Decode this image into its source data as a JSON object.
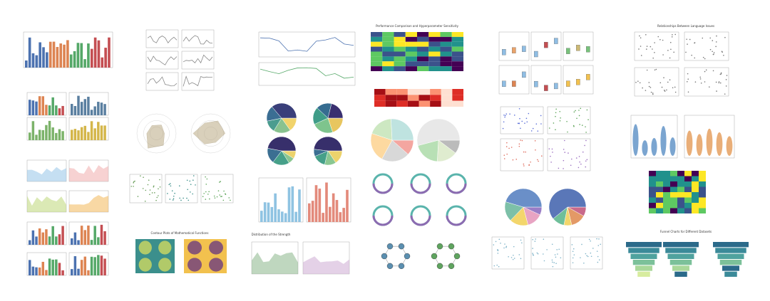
{
  "panels": {
    "performance": {
      "title": "Performance Comparison and Hyperparameter Sensitivity"
    },
    "contour": {
      "title": "Contour Plots of Mathematical Functions"
    },
    "language": {
      "title": "Relationships Between Language Issues"
    },
    "funnel": {
      "title": "Funnel Charts for Different Datasets"
    },
    "distribution": {
      "title": "Distribution of the Strength"
    }
  }
}
